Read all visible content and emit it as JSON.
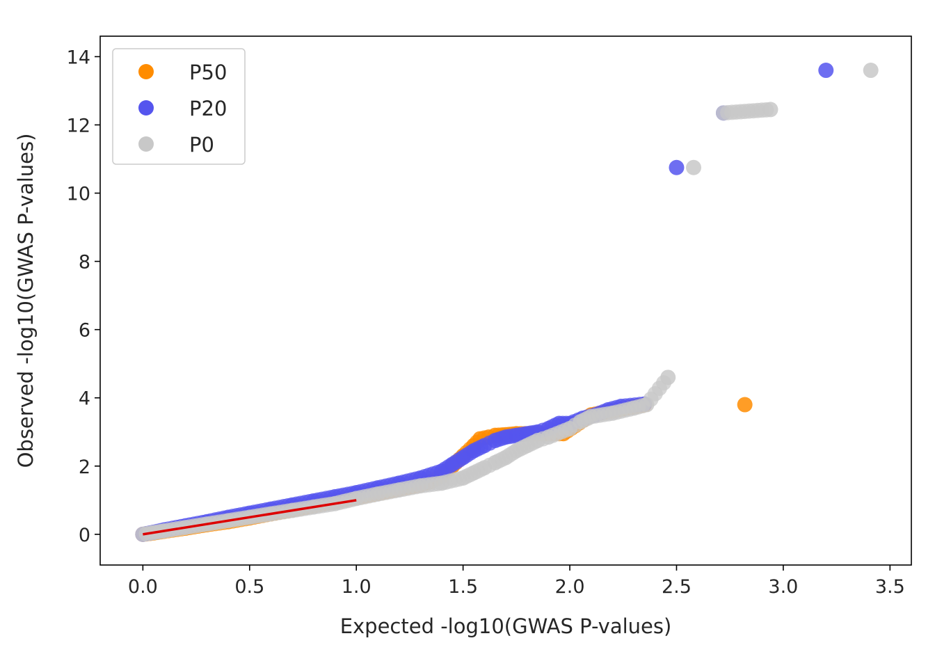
{
  "chart_data": {
    "type": "scatter",
    "title": "",
    "xlabel": "Expected -log10(GWAS P-values)",
    "ylabel": "Observed -log10(GWAS P-values)",
    "xlim": [
      -0.2,
      3.6
    ],
    "ylim": [
      -0.9,
      14.6
    ],
    "xticks": [
      0.0,
      0.5,
      1.0,
      1.5,
      2.0,
      2.5,
      3.0,
      3.5
    ],
    "xtick_labels": [
      "0.0",
      "0.5",
      "1.0",
      "1.5",
      "2.0",
      "2.5",
      "3.0",
      "3.5"
    ],
    "yticks": [
      0,
      2,
      4,
      6,
      8,
      10,
      12,
      14
    ],
    "ytick_labels": [
      "0",
      "2",
      "4",
      "6",
      "8",
      "10",
      "12",
      "14"
    ],
    "grid": false,
    "legend_position": "top-left",
    "series": [
      {
        "name": "P50",
        "color": "#ff8c00",
        "x": [
          0.0,
          0.05,
          0.1,
          0.2,
          0.3,
          0.4,
          0.5,
          0.6,
          0.7,
          0.8,
          0.9,
          1.0,
          1.1,
          1.2,
          1.3,
          1.35,
          1.4,
          1.45,
          1.5,
          1.55,
          1.58,
          1.62,
          1.65,
          1.7,
          1.75,
          1.97,
          2.1,
          2.35,
          2.82
        ],
        "y": [
          0.0,
          0.04,
          0.09,
          0.18,
          0.28,
          0.37,
          0.48,
          0.6,
          0.72,
          0.84,
          0.96,
          1.08,
          1.2,
          1.33,
          1.45,
          1.55,
          1.7,
          2.0,
          2.3,
          2.6,
          2.8,
          2.85,
          2.9,
          2.92,
          2.95,
          2.95,
          3.5,
          3.8,
          3.8
        ]
      },
      {
        "name": "P20",
        "color": "#5555ee",
        "x": [
          0.0,
          0.05,
          0.1,
          0.2,
          0.3,
          0.4,
          0.5,
          0.6,
          0.7,
          0.8,
          0.9,
          1.0,
          1.1,
          1.2,
          1.3,
          1.4,
          1.45,
          1.5,
          1.55,
          1.6,
          1.65,
          1.7,
          1.75,
          1.8,
          1.85,
          1.9,
          1.95,
          2.0,
          2.06,
          2.12,
          2.18,
          2.24,
          2.35,
          2.5,
          2.72,
          3.2
        ],
        "y": [
          0.0,
          0.06,
          0.13,
          0.25,
          0.37,
          0.5,
          0.62,
          0.74,
          0.86,
          0.98,
          1.1,
          1.22,
          1.36,
          1.5,
          1.65,
          1.85,
          2.05,
          2.25,
          2.45,
          2.6,
          2.75,
          2.85,
          2.9,
          2.95,
          3.0,
          3.1,
          3.25,
          3.25,
          3.4,
          3.5,
          3.65,
          3.75,
          3.82,
          10.75,
          12.35,
          13.6
        ]
      },
      {
        "name": "P0",
        "color": "#c8c8c8",
        "x": [
          0.0,
          0.05,
          0.1,
          0.2,
          0.3,
          0.4,
          0.5,
          0.6,
          0.7,
          0.8,
          0.9,
          1.0,
          1.1,
          1.2,
          1.3,
          1.4,
          1.5,
          1.55,
          1.6,
          1.65,
          1.7,
          1.75,
          1.8,
          1.85,
          1.9,
          2.0,
          2.05,
          2.1,
          2.2,
          2.3,
          2.36,
          2.46,
          2.58,
          2.72,
          2.94,
          3.41
        ],
        "y": [
          0.0,
          0.05,
          0.1,
          0.2,
          0.3,
          0.4,
          0.5,
          0.6,
          0.7,
          0.8,
          0.9,
          1.05,
          1.18,
          1.3,
          1.42,
          1.5,
          1.65,
          1.8,
          1.95,
          2.1,
          2.25,
          2.45,
          2.6,
          2.75,
          2.85,
          3.1,
          3.3,
          3.45,
          3.55,
          3.7,
          3.8,
          4.6,
          10.75,
          12.35,
          12.45,
          13.6
        ]
      }
    ],
    "reference_line": {
      "color": "#dd0000",
      "x": [
        0.0,
        1.0
      ],
      "y": [
        0.0,
        1.0
      ]
    }
  }
}
